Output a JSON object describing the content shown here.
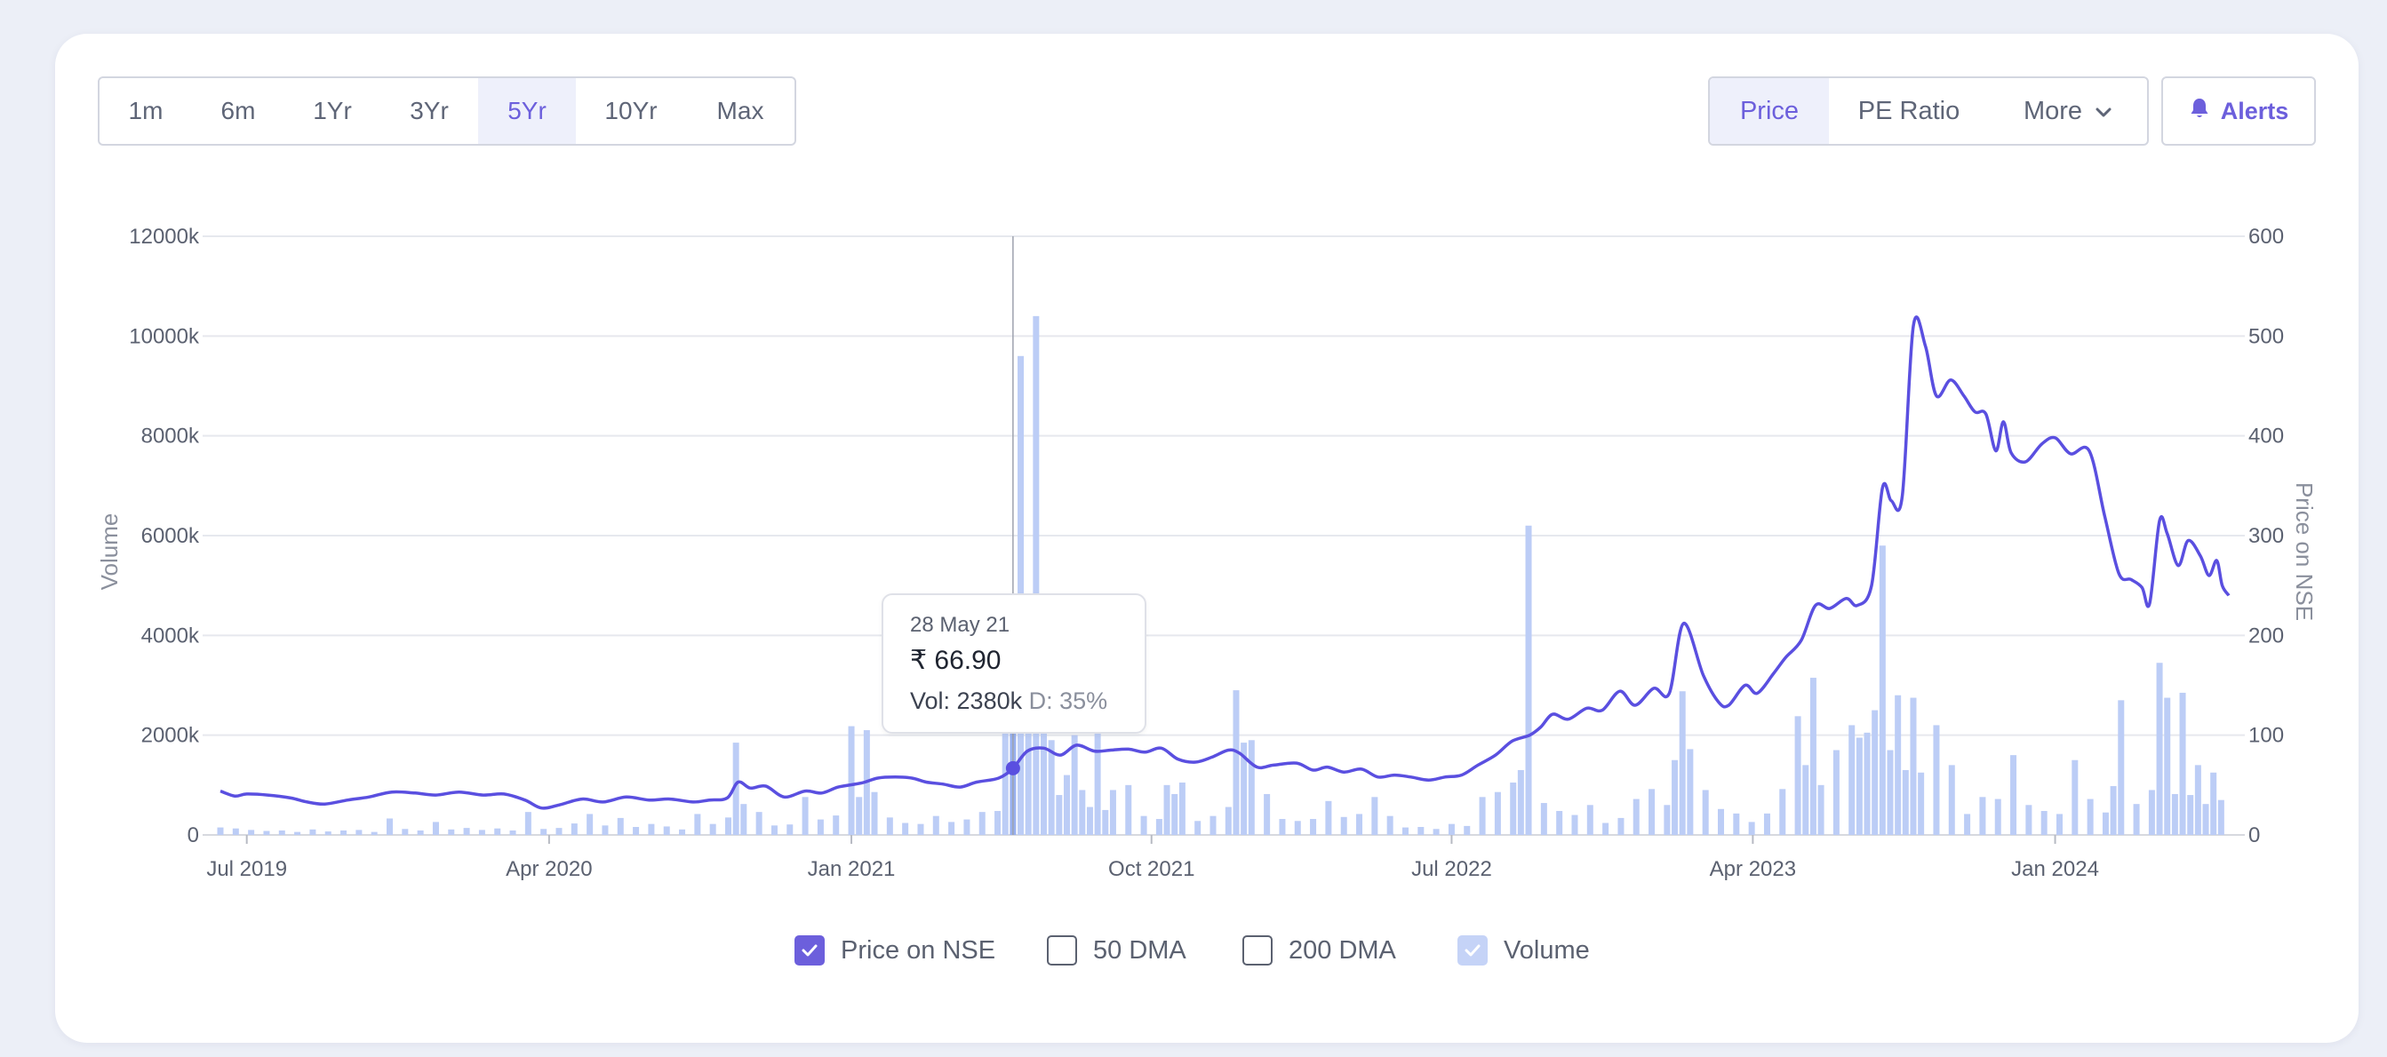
{
  "range_tabs": [
    {
      "label": "1m",
      "active": false
    },
    {
      "label": "6m",
      "active": false
    },
    {
      "label": "1Yr",
      "active": false
    },
    {
      "label": "3Yr",
      "active": false
    },
    {
      "label": "5Yr",
      "active": true
    },
    {
      "label": "10Yr",
      "active": false
    },
    {
      "label": "Max",
      "active": false
    }
  ],
  "metric_tabs": {
    "price": "Price",
    "pe_ratio": "PE Ratio",
    "more": "More"
  },
  "alerts_label": "Alerts",
  "icons": {
    "more": "chevron-down-icon",
    "alerts": "bell-icon",
    "check": "checkmark-icon"
  },
  "colors": {
    "accent": "#6c5fdc",
    "price_line": "#5a4fe0",
    "volume_bar": "#bccdf6",
    "volume_bar_highlight": "#98b0ef"
  },
  "tooltip": {
    "date": "28 May 21",
    "price": "₹ 66.90",
    "vol": "Vol: 2380k",
    "delivery": "D: 35%"
  },
  "legend": [
    {
      "label": "Price on NSE",
      "checked": true
    },
    {
      "label": "50 DMA",
      "checked": false
    },
    {
      "label": "200 DMA",
      "checked": false
    },
    {
      "label": "Volume",
      "checked": true
    }
  ],
  "chart_data": {
    "type": "line",
    "y_left_label": "Volume",
    "y_right_label": "Price on NSE",
    "y_left_ticks": [
      "0",
      "2000k",
      "4000k",
      "6000k",
      "8000k",
      "10000k",
      "12000k"
    ],
    "y_right_ticks": [
      "0",
      "100",
      "200",
      "300",
      "400",
      "500",
      "600"
    ],
    "y_left_range": [
      0,
      12000
    ],
    "y_right_range": [
      0,
      600
    ],
    "x_range": [
      "2019-06-07",
      "2024-06-07"
    ],
    "x_ticks": [
      {
        "label": "Jul 2019",
        "date": "2019-07-01"
      },
      {
        "label": "Apr 2020",
        "date": "2020-04-01"
      },
      {
        "label": "Jan 2021",
        "date": "2021-01-01"
      },
      {
        "label": "Oct 2021",
        "date": "2021-10-01"
      },
      {
        "label": "Jul 2022",
        "date": "2022-07-01"
      },
      {
        "label": "Apr 2023",
        "date": "2023-04-01"
      },
      {
        "label": "Jan 2024",
        "date": "2024-01-01"
      }
    ],
    "grid": true,
    "legend_position": "bottom",
    "highlight": {
      "date": "2021-05-28",
      "price": 66.9,
      "volume_k": 2380
    },
    "price_series": {
      "name": "Price on NSE",
      "points": [
        [
          "2019-06-07",
          44
        ],
        [
          "2019-06-20",
          39
        ],
        [
          "2019-07-01",
          41
        ],
        [
          "2019-07-20",
          40
        ],
        [
          "2019-08-10",
          37
        ],
        [
          "2019-08-25",
          33
        ],
        [
          "2019-09-10",
          31
        ],
        [
          "2019-10-01",
          35
        ],
        [
          "2019-10-20",
          38
        ],
        [
          "2019-11-10",
          43
        ],
        [
          "2019-12-01",
          42
        ],
        [
          "2019-12-20",
          40
        ],
        [
          "2020-01-10",
          43
        ],
        [
          "2020-02-01",
          40
        ],
        [
          "2020-02-20",
          41
        ],
        [
          "2020-03-10",
          35
        ],
        [
          "2020-03-25",
          27
        ],
        [
          "2020-04-10",
          30
        ],
        [
          "2020-05-01",
          36
        ],
        [
          "2020-05-20",
          33
        ],
        [
          "2020-06-10",
          38
        ],
        [
          "2020-07-01",
          35
        ],
        [
          "2020-07-20",
          36
        ],
        [
          "2020-08-10",
          33
        ],
        [
          "2020-08-25",
          35
        ],
        [
          "2020-09-10",
          37
        ],
        [
          "2020-09-20",
          53
        ],
        [
          "2020-10-01",
          47
        ],
        [
          "2020-10-15",
          49
        ],
        [
          "2020-11-01",
          38
        ],
        [
          "2020-11-20",
          44
        ],
        [
          "2020-12-05",
          42
        ],
        [
          "2020-12-20",
          48
        ],
        [
          "2021-01-10",
          52
        ],
        [
          "2021-01-25",
          57
        ],
        [
          "2021-02-10",
          58
        ],
        [
          "2021-02-25",
          57
        ],
        [
          "2021-03-10",
          53
        ],
        [
          "2021-03-25",
          51
        ],
        [
          "2021-04-10",
          48
        ],
        [
          "2021-04-25",
          53
        ],
        [
          "2021-05-15",
          57
        ],
        [
          "2021-05-28",
          66.9
        ],
        [
          "2021-06-10",
          84
        ],
        [
          "2021-06-25",
          87
        ],
        [
          "2021-07-10",
          80
        ],
        [
          "2021-07-25",
          90
        ],
        [
          "2021-08-10",
          84
        ],
        [
          "2021-08-25",
          85
        ],
        [
          "2021-09-10",
          86
        ],
        [
          "2021-09-25",
          83
        ],
        [
          "2021-10-10",
          87
        ],
        [
          "2021-10-25",
          76
        ],
        [
          "2021-11-10",
          73
        ],
        [
          "2021-11-25",
          78
        ],
        [
          "2021-12-10",
          85
        ],
        [
          "2021-12-20",
          82
        ],
        [
          "2022-01-05",
          68
        ],
        [
          "2022-01-20",
          70
        ],
        [
          "2022-02-10",
          72
        ],
        [
          "2022-02-25",
          65
        ],
        [
          "2022-03-10",
          68
        ],
        [
          "2022-03-25",
          63
        ],
        [
          "2022-04-10",
          66
        ],
        [
          "2022-04-25",
          58
        ],
        [
          "2022-05-10",
          60
        ],
        [
          "2022-05-25",
          58
        ],
        [
          "2022-06-10",
          55
        ],
        [
          "2022-06-25",
          58
        ],
        [
          "2022-07-10",
          60
        ],
        [
          "2022-07-25",
          70
        ],
        [
          "2022-08-10",
          80
        ],
        [
          "2022-08-25",
          94
        ],
        [
          "2022-09-10",
          100
        ],
        [
          "2022-09-20",
          108
        ],
        [
          "2022-10-01",
          121
        ],
        [
          "2022-10-15",
          116
        ],
        [
          "2022-11-01",
          127
        ],
        [
          "2022-11-15",
          125
        ],
        [
          "2022-12-01",
          144
        ],
        [
          "2022-12-15",
          130
        ],
        [
          "2023-01-01",
          147
        ],
        [
          "2023-01-15",
          142
        ],
        [
          "2023-01-28",
          212
        ],
        [
          "2023-02-15",
          160
        ],
        [
          "2023-03-01",
          133
        ],
        [
          "2023-03-10",
          130
        ],
        [
          "2023-03-25",
          150
        ],
        [
          "2023-04-05",
          142
        ],
        [
          "2023-04-20",
          162
        ],
        [
          "2023-05-01",
          178
        ],
        [
          "2023-05-15",
          195
        ],
        [
          "2023-05-28",
          230
        ],
        [
          "2023-06-10",
          227
        ],
        [
          "2023-06-25",
          237
        ],
        [
          "2023-07-05",
          230
        ],
        [
          "2023-07-18",
          250
        ],
        [
          "2023-07-28",
          348
        ],
        [
          "2023-08-05",
          335
        ],
        [
          "2023-08-15",
          340
        ],
        [
          "2023-08-25",
          510
        ],
        [
          "2023-09-05",
          490
        ],
        [
          "2023-09-15",
          440
        ],
        [
          "2023-09-28",
          456
        ],
        [
          "2023-10-10",
          440
        ],
        [
          "2023-10-20",
          424
        ],
        [
          "2023-10-30",
          422
        ],
        [
          "2023-11-08",
          385
        ],
        [
          "2023-11-15",
          414
        ],
        [
          "2023-11-22",
          383
        ],
        [
          "2023-12-05",
          374
        ],
        [
          "2023-12-20",
          392
        ],
        [
          "2024-01-01",
          398
        ],
        [
          "2024-01-15",
          382
        ],
        [
          "2024-02-01",
          385
        ],
        [
          "2024-02-15",
          320
        ],
        [
          "2024-02-28",
          262
        ],
        [
          "2024-03-10",
          256
        ],
        [
          "2024-03-20",
          248
        ],
        [
          "2024-03-27",
          232
        ],
        [
          "2024-04-05",
          315
        ],
        [
          "2024-04-12",
          302
        ],
        [
          "2024-04-22",
          270
        ],
        [
          "2024-05-01",
          295
        ],
        [
          "2024-05-12",
          280
        ],
        [
          "2024-05-20",
          260
        ],
        [
          "2024-05-27",
          275
        ],
        [
          "2024-06-01",
          250
        ],
        [
          "2024-06-07",
          240
        ]
      ]
    },
    "volume_series": {
      "name": "Volume",
      "unit": "k",
      "points": [
        [
          "2019-06-07",
          150
        ],
        [
          "2019-06-21",
          130
        ],
        [
          "2019-07-05",
          100
        ],
        [
          "2019-07-19",
          80
        ],
        [
          "2019-08-02",
          90
        ],
        [
          "2019-08-16",
          60
        ],
        [
          "2019-08-30",
          110
        ],
        [
          "2019-09-13",
          70
        ],
        [
          "2019-09-27",
          90
        ],
        [
          "2019-10-11",
          100
        ],
        [
          "2019-10-25",
          60
        ],
        [
          "2019-11-08",
          330
        ],
        [
          "2019-11-22",
          120
        ],
        [
          "2019-12-06",
          90
        ],
        [
          "2019-12-20",
          260
        ],
        [
          "2020-01-03",
          110
        ],
        [
          "2020-01-17",
          140
        ],
        [
          "2020-01-31",
          100
        ],
        [
          "2020-02-14",
          130
        ],
        [
          "2020-02-28",
          90
        ],
        [
          "2020-03-13",
          460
        ],
        [
          "2020-03-27",
          120
        ],
        [
          "2020-04-10",
          140
        ],
        [
          "2020-04-24",
          230
        ],
        [
          "2020-05-08",
          420
        ],
        [
          "2020-05-22",
          190
        ],
        [
          "2020-06-05",
          340
        ],
        [
          "2020-06-19",
          160
        ],
        [
          "2020-07-03",
          220
        ],
        [
          "2020-07-17",
          170
        ],
        [
          "2020-07-31",
          110
        ],
        [
          "2020-08-14",
          420
        ],
        [
          "2020-08-28",
          220
        ],
        [
          "2020-09-11",
          350
        ],
        [
          "2020-09-18",
          1850
        ],
        [
          "2020-09-25",
          620
        ],
        [
          "2020-10-09",
          460
        ],
        [
          "2020-10-23",
          190
        ],
        [
          "2020-11-06",
          210
        ],
        [
          "2020-11-20",
          760
        ],
        [
          "2020-12-04",
          310
        ],
        [
          "2020-12-18",
          390
        ],
        [
          "2021-01-01",
          2180
        ],
        [
          "2021-01-08",
          760
        ],
        [
          "2021-01-15",
          2100
        ],
        [
          "2021-01-22",
          860
        ],
        [
          "2021-02-05",
          350
        ],
        [
          "2021-02-19",
          240
        ],
        [
          "2021-03-05",
          220
        ],
        [
          "2021-03-19",
          380
        ],
        [
          "2021-04-02",
          260
        ],
        [
          "2021-04-16",
          310
        ],
        [
          "2021-04-30",
          460
        ],
        [
          "2021-05-14",
          480
        ],
        [
          "2021-05-21",
          2300
        ],
        [
          "2021-05-28",
          2380
        ],
        [
          "2021-06-04",
          9600
        ],
        [
          "2021-06-11",
          4200
        ],
        [
          "2021-06-18",
          10400
        ],
        [
          "2021-06-25",
          2500
        ],
        [
          "2021-07-02",
          1900
        ],
        [
          "2021-07-09",
          800
        ],
        [
          "2021-07-16",
          1200
        ],
        [
          "2021-07-23",
          2000
        ],
        [
          "2021-07-30",
          900
        ],
        [
          "2021-08-06",
          560
        ],
        [
          "2021-08-13",
          2050
        ],
        [
          "2021-08-20",
          500
        ],
        [
          "2021-08-27",
          900
        ],
        [
          "2021-09-10",
          1000
        ],
        [
          "2021-09-24",
          380
        ],
        [
          "2021-10-08",
          320
        ],
        [
          "2021-10-15",
          1000
        ],
        [
          "2021-10-22",
          820
        ],
        [
          "2021-10-29",
          1050
        ],
        [
          "2021-11-12",
          280
        ],
        [
          "2021-11-26",
          380
        ],
        [
          "2021-12-10",
          560
        ],
        [
          "2021-12-17",
          2900
        ],
        [
          "2021-12-24",
          1850
        ],
        [
          "2021-12-31",
          1900
        ],
        [
          "2022-01-14",
          820
        ],
        [
          "2022-01-28",
          320
        ],
        [
          "2022-02-11",
          280
        ],
        [
          "2022-02-25",
          320
        ],
        [
          "2022-03-11",
          680
        ],
        [
          "2022-03-25",
          360
        ],
        [
          "2022-04-08",
          420
        ],
        [
          "2022-04-22",
          760
        ],
        [
          "2022-05-06",
          380
        ],
        [
          "2022-05-20",
          150
        ],
        [
          "2022-06-03",
          160
        ],
        [
          "2022-06-17",
          120
        ],
        [
          "2022-07-01",
          220
        ],
        [
          "2022-07-15",
          180
        ],
        [
          "2022-07-29",
          760
        ],
        [
          "2022-08-12",
          860
        ],
        [
          "2022-08-26",
          1050
        ],
        [
          "2022-09-02",
          1300
        ],
        [
          "2022-09-09",
          6200
        ],
        [
          "2022-09-23",
          640
        ],
        [
          "2022-10-07",
          480
        ],
        [
          "2022-10-21",
          400
        ],
        [
          "2022-11-04",
          600
        ],
        [
          "2022-11-18",
          240
        ],
        [
          "2022-12-02",
          340
        ],
        [
          "2022-12-16",
          720
        ],
        [
          "2022-12-30",
          920
        ],
        [
          "2023-01-13",
          600
        ],
        [
          "2023-01-20",
          1500
        ],
        [
          "2023-01-27",
          2880
        ],
        [
          "2023-02-03",
          1720
        ],
        [
          "2023-02-17",
          900
        ],
        [
          "2023-03-03",
          520
        ],
        [
          "2023-03-17",
          430
        ],
        [
          "2023-03-31",
          260
        ],
        [
          "2023-04-14",
          430
        ],
        [
          "2023-04-28",
          920
        ],
        [
          "2023-05-12",
          2380
        ],
        [
          "2023-05-19",
          1400
        ],
        [
          "2023-05-26",
          3150
        ],
        [
          "2023-06-02",
          1000
        ],
        [
          "2023-06-16",
          1700
        ],
        [
          "2023-06-30",
          2200
        ],
        [
          "2023-07-07",
          1950
        ],
        [
          "2023-07-14",
          2050
        ],
        [
          "2023-07-21",
          2500
        ],
        [
          "2023-07-28",
          5800
        ],
        [
          "2023-08-04",
          1700
        ],
        [
          "2023-08-11",
          2800
        ],
        [
          "2023-08-18",
          1300
        ],
        [
          "2023-08-25",
          2750
        ],
        [
          "2023-09-01",
          1250
        ],
        [
          "2023-09-15",
          2200
        ],
        [
          "2023-09-29",
          1400
        ],
        [
          "2023-10-13",
          420
        ],
        [
          "2023-10-27",
          760
        ],
        [
          "2023-11-10",
          720
        ],
        [
          "2023-11-24",
          1600
        ],
        [
          "2023-12-08",
          600
        ],
        [
          "2023-12-22",
          480
        ],
        [
          "2024-01-05",
          420
        ],
        [
          "2024-01-19",
          1500
        ],
        [
          "2024-02-02",
          720
        ],
        [
          "2024-02-16",
          450
        ],
        [
          "2024-02-23",
          980
        ],
        [
          "2024-03-01",
          2700
        ],
        [
          "2024-03-15",
          620
        ],
        [
          "2024-03-29",
          900
        ],
        [
          "2024-04-05",
          3450
        ],
        [
          "2024-04-12",
          2750
        ],
        [
          "2024-04-19",
          820
        ],
        [
          "2024-04-26",
          2850
        ],
        [
          "2024-05-03",
          800
        ],
        [
          "2024-05-10",
          1400
        ],
        [
          "2024-05-17",
          620
        ],
        [
          "2024-05-24",
          1250
        ],
        [
          "2024-05-31",
          700
        ]
      ]
    }
  }
}
